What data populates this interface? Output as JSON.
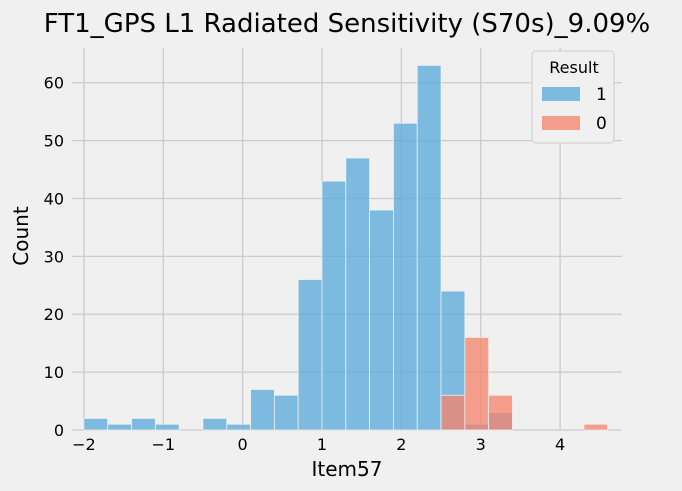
{
  "chart_data": {
    "type": "bar",
    "title": "FT1_GPS L1 Radiated Sensitivity (S70s)_9.09%",
    "xlabel": "Item57",
    "ylabel": "Count",
    "xlim": [
      -2.15,
      4.78
    ],
    "ylim": [
      0,
      66
    ],
    "xticks": [
      -2,
      -1,
      0,
      1,
      2,
      3,
      4
    ],
    "yticks": [
      0,
      10,
      20,
      30,
      40,
      50,
      60
    ],
    "grid": true,
    "bin_width": 0.3,
    "bin_start": -2.0,
    "legend": {
      "title": "Result",
      "position": "top-right"
    },
    "series": [
      {
        "name": "1",
        "color": "#56a8da",
        "values": [
          2,
          1,
          2,
          1,
          0,
          2,
          1,
          7,
          6,
          26,
          43,
          47,
          38,
          53,
          63,
          24,
          1,
          3,
          0,
          0,
          0,
          0
        ]
      },
      {
        "name": "0",
        "color": "#f7826a",
        "values": [
          0,
          0,
          0,
          0,
          0,
          0,
          0,
          0,
          0,
          0,
          0,
          0,
          0,
          0,
          0,
          6,
          16,
          6,
          0,
          0,
          0,
          1
        ]
      }
    ]
  }
}
